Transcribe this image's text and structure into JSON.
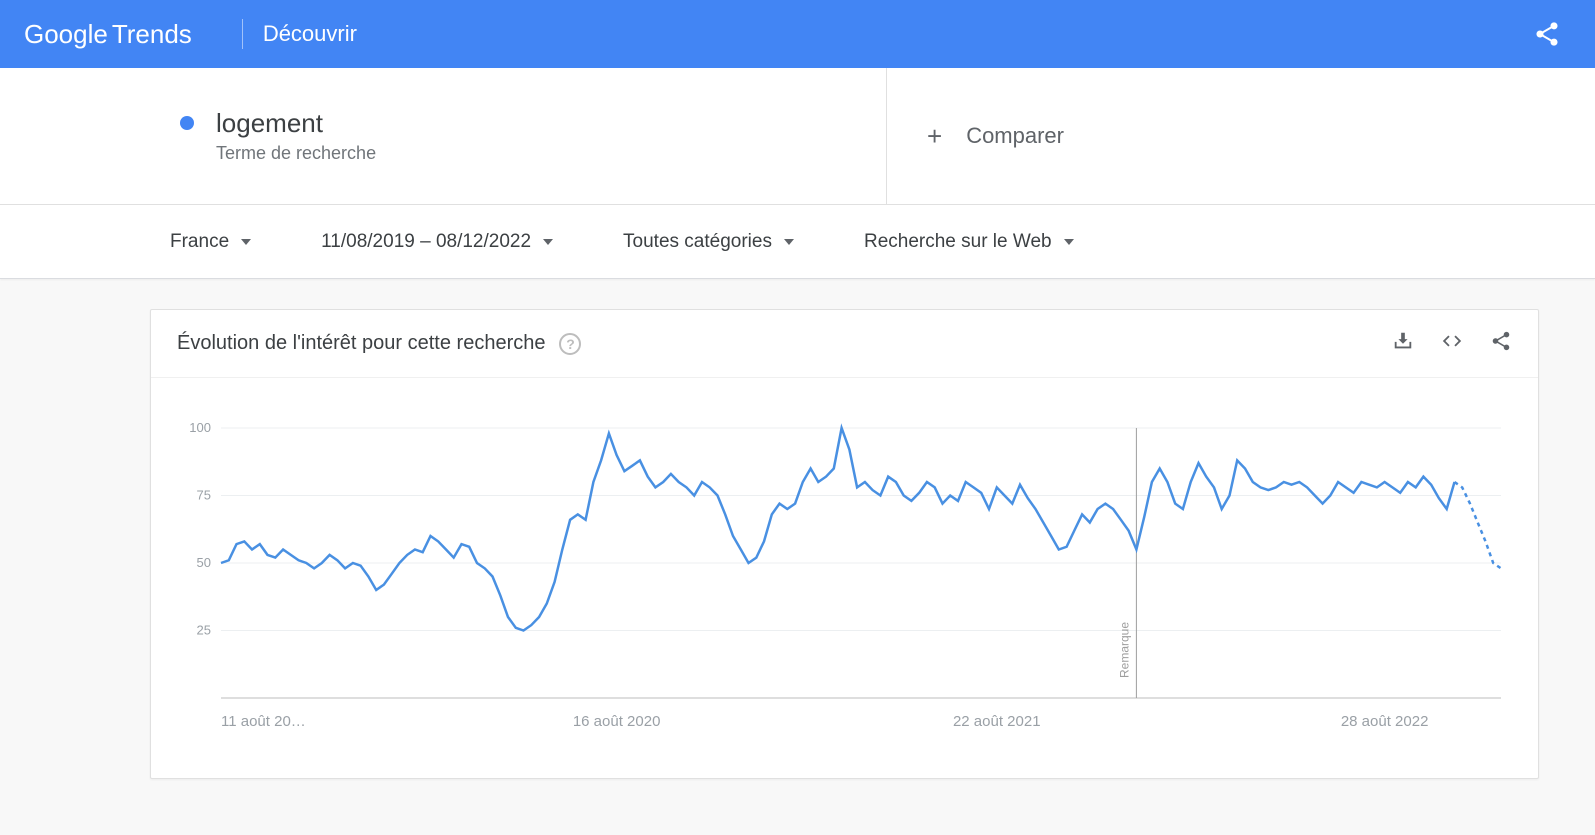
{
  "header": {
    "logo_google": "Google",
    "logo_trends": "Trends",
    "tab": "Découvrir"
  },
  "search": {
    "term": "logement",
    "subtitle": "Terme de recherche",
    "compare_label": "Comparer",
    "dot_color": "#4285f4"
  },
  "filters": {
    "region": "France",
    "daterange": "11/08/2019 – 08/12/2022",
    "category": "Toutes catégories",
    "search_type": "Recherche sur le Web"
  },
  "chart": {
    "title": "Évolution de l'intérêt pour cette recherche",
    "type": "line",
    "line_color": "#4990e2",
    "line_width": 2.5,
    "ylim": [
      0,
      100
    ],
    "yticks": [
      25,
      50,
      75,
      100
    ],
    "grid_color": "#eceff1",
    "background_color": "#ffffff",
    "x_labels": [
      "11 août 20…",
      "16 août 2020",
      "22 août 2021",
      "28 août 2022"
    ],
    "x_marker_index": 118,
    "x_marker_label": "Remarque",
    "dashed_tail_start": 160,
    "values": [
      50,
      51,
      57,
      58,
      55,
      57,
      53,
      52,
      55,
      53,
      51,
      50,
      48,
      50,
      53,
      51,
      48,
      50,
      49,
      45,
      40,
      42,
      46,
      50,
      53,
      55,
      54,
      60,
      58,
      55,
      52,
      57,
      56,
      50,
      48,
      45,
      38,
      30,
      26,
      25,
      27,
      30,
      35,
      43,
      55,
      66,
      68,
      66,
      80,
      88,
      98,
      90,
      84,
      86,
      88,
      82,
      78,
      80,
      83,
      80,
      78,
      75,
      80,
      78,
      75,
      68,
      60,
      55,
      50,
      52,
      58,
      68,
      72,
      70,
      72,
      80,
      85,
      80,
      82,
      85,
      100,
      92,
      78,
      80,
      77,
      75,
      82,
      80,
      75,
      73,
      76,
      80,
      78,
      72,
      75,
      73,
      80,
      78,
      76,
      70,
      78,
      75,
      72,
      79,
      74,
      70,
      65,
      60,
      55,
      56,
      62,
      68,
      65,
      70,
      72,
      70,
      66,
      62,
      55,
      67,
      80,
      85,
      80,
      72,
      70,
      80,
      87,
      82,
      78,
      70,
      75,
      88,
      85,
      80,
      78,
      77,
      78,
      80,
      79,
      80,
      78,
      75,
      72,
      75,
      80,
      78,
      76,
      80,
      79,
      78,
      80,
      78,
      76,
      80,
      78,
      82,
      79,
      74,
      70,
      80,
      78,
      72,
      65,
      58,
      50,
      48
    ]
  }
}
